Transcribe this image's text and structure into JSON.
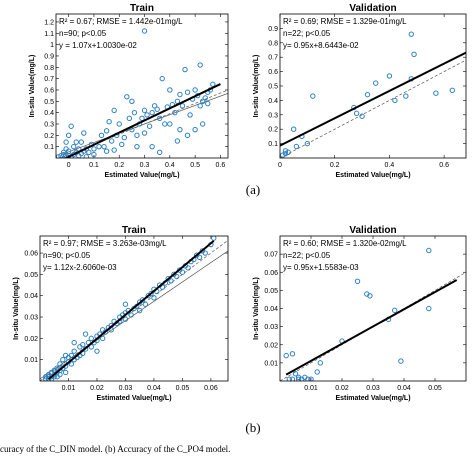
{
  "labels": {
    "a": "(a)",
    "b": "(b)"
  },
  "caption": "curacy of the C_DIN model. (b) Accuracy of the C_PO4 model.",
  "colors": {
    "points": "#2f80c2",
    "fit": "#000000",
    "reference": "#555555"
  },
  "chart_data": [
    {
      "type": "scatter",
      "title": "Train",
      "xlabel": "Estimated Value(mg/L)",
      "ylabel": "In-situ Value(mg/L)",
      "xlim": [
        -0.05,
        0.63
      ],
      "ylim": [
        0,
        1.27
      ],
      "xticks": [
        0,
        0.1,
        0.2,
        0.3,
        0.4,
        0.5,
        0.6
      ],
      "xtick_labels": [
        "0",
        "0.1",
        "0.2",
        "0.3",
        "0.4",
        "0.5",
        "0.6"
      ],
      "yticks": [
        0.1,
        0.2,
        0.3,
        0.4,
        0.5,
        0.6,
        0.7,
        0.8,
        0.9,
        1.0,
        1.1,
        1.2
      ],
      "ytick_labels": [
        "0.1",
        "0.2",
        "0.3",
        "0.4",
        "0.5",
        "0.6",
        "0.7",
        "0.8",
        "0.9",
        "1",
        "1.1",
        "1.2"
      ],
      "stats": [
        "R² = 0.67; RMSE = 1.442e-01mg/L",
        "n=90; p<0.05",
        "y = 1.07x+1.0030e-02"
      ],
      "fit_line": {
        "x": [
          -0.03,
          0.6
        ],
        "y": [
          -0.022,
          0.652
        ]
      },
      "reference_lines": [
        {
          "style": "dashed",
          "x": [
            -0.03,
            0.63
          ],
          "y": [
            0.0,
            0.6
          ]
        },
        {
          "style": "solid",
          "x": [
            -0.03,
            0.63
          ],
          "y": [
            0.03,
            0.57
          ]
        }
      ],
      "points": [
        [
          -0.04,
          0.01
        ],
        [
          -0.03,
          0.02
        ],
        [
          -0.02,
          0.03
        ],
        [
          -0.02,
          0.05
        ],
        [
          -0.01,
          0.02
        ],
        [
          -0.01,
          0.08
        ],
        [
          -0.01,
          0.14
        ],
        [
          0.0,
          0.02
        ],
        [
          0.0,
          0.06
        ],
        [
          0.0,
          0.2
        ],
        [
          0.01,
          0.28
        ],
        [
          0.01,
          0.01
        ],
        [
          0.02,
          0.1
        ],
        [
          0.02,
          0.03
        ],
        [
          0.03,
          0.05
        ],
        [
          0.03,
          0.14
        ],
        [
          0.04,
          0.02
        ],
        [
          0.04,
          0.08
        ],
        [
          0.05,
          0.04
        ],
        [
          0.05,
          0.14
        ],
        [
          0.06,
          0.06
        ],
        [
          0.07,
          0.01
        ],
        [
          0.07,
          0.08
        ],
        [
          0.08,
          0.05
        ],
        [
          0.09,
          0.12
        ],
        [
          0.1,
          0.03
        ],
        [
          0.1,
          0.08
        ],
        [
          0.12,
          0.1
        ],
        [
          0.13,
          0.2
        ],
        [
          0.14,
          0.1
        ],
        [
          0.15,
          0.06
        ],
        [
          0.15,
          0.24
        ],
        [
          0.16,
          0.32
        ],
        [
          0.17,
          0.15
        ],
        [
          0.18,
          0.07
        ],
        [
          0.18,
          0.42
        ],
        [
          0.19,
          0.2
        ],
        [
          0.2,
          0.3
        ],
        [
          0.21,
          0.12
        ],
        [
          0.22,
          0.18
        ],
        [
          0.23,
          0.54
        ],
        [
          0.24,
          0.35
        ],
        [
          0.25,
          0.5
        ],
        [
          0.25,
          0.25
        ],
        [
          0.26,
          0.4
        ],
        [
          0.27,
          0.2
        ],
        [
          0.28,
          0.3
        ],
        [
          0.29,
          0.35
        ],
        [
          0.3,
          0.22
        ],
        [
          0.3,
          0.42
        ],
        [
          0.31,
          0.38
        ],
        [
          0.32,
          0.28
        ],
        [
          0.33,
          0.4
        ],
        [
          0.33,
          0.1
        ],
        [
          0.34,
          0.46
        ],
        [
          0.35,
          0.43
        ],
        [
          0.36,
          0.35
        ],
        [
          0.37,
          0.7
        ],
        [
          0.38,
          0.3
        ],
        [
          0.39,
          0.45
        ],
        [
          0.4,
          0.3
        ],
        [
          0.4,
          0.6
        ],
        [
          0.41,
          0.47
        ],
        [
          0.42,
          0.4
        ],
        [
          0.43,
          0.5
        ],
        [
          0.43,
          0.15
        ],
        [
          0.44,
          0.56
        ],
        [
          0.45,
          0.46
        ],
        [
          0.46,
          0.78
        ],
        [
          0.47,
          0.2
        ],
        [
          0.47,
          0.58
        ],
        [
          0.48,
          0.38
        ],
        [
          0.49,
          0.52
        ],
        [
          0.5,
          0.25
        ],
        [
          0.5,
          0.6
        ],
        [
          0.51,
          0.55
        ],
        [
          0.52,
          0.46
        ],
        [
          0.52,
          0.82
        ],
        [
          0.53,
          0.5
        ],
        [
          0.54,
          0.53
        ],
        [
          0.55,
          0.58
        ],
        [
          0.56,
          0.6
        ],
        [
          0.55,
          0.48
        ],
        [
          0.53,
          0.3
        ],
        [
          0.44,
          0.25
        ],
        [
          0.36,
          0.05
        ],
        [
          0.27,
          0.1
        ],
        [
          0.06,
          0.22
        ],
        [
          0.57,
          0.65
        ],
        [
          0.3,
          1.12
        ]
      ]
    },
    {
      "type": "scatter",
      "title": "Validation",
      "xlabel": "Estimated Value(mg/L)",
      "ylabel": "In-situ Value(mg/L)",
      "xlim": [
        0,
        0.68
      ],
      "ylim": [
        0,
        1.0
      ],
      "xticks": [
        0,
        0.2,
        0.4,
        0.6
      ],
      "xtick_labels": [
        "0",
        "0.2",
        "0.4",
        "0.6"
      ],
      "yticks": [
        0.1,
        0.2,
        0.3,
        0.4,
        0.5,
        0.6,
        0.7,
        0.8,
        0.9
      ],
      "ytick_labels": [
        "0.1",
        "0.2",
        "0.3",
        "0.4",
        "0.5",
        "0.6",
        "0.7",
        "0.8",
        "0.9"
      ],
      "stats": [
        "R² = 0.69; RMSE = 1.329e-01mg/L",
        "n=22; p<0.05",
        "y= 0.95x+8.6443e-02"
      ],
      "fit_line": {
        "x": [
          0,
          0.68
        ],
        "y": [
          0.086,
          0.732
        ]
      },
      "reference_lines": [
        {
          "style": "dashed",
          "x": [
            0,
            0.68
          ],
          "y": [
            0.0,
            0.68
          ]
        }
      ],
      "points": [
        [
          0.01,
          0.02
        ],
        [
          0.02,
          0.03
        ],
        [
          0.03,
          0.04
        ],
        [
          0.05,
          0.2
        ],
        [
          0.06,
          0.08
        ],
        [
          0.08,
          0.15
        ],
        [
          0.1,
          0.1
        ],
        [
          0.12,
          0.43
        ],
        [
          0.27,
          0.35
        ],
        [
          0.28,
          0.31
        ],
        [
          0.3,
          0.29
        ],
        [
          0.32,
          0.44
        ],
        [
          0.35,
          0.52
        ],
        [
          0.4,
          0.57
        ],
        [
          0.42,
          0.4
        ],
        [
          0.46,
          0.43
        ],
        [
          0.48,
          0.55
        ],
        [
          0.48,
          0.86
        ],
        [
          0.49,
          0.72
        ],
        [
          0.57,
          0.45
        ],
        [
          0.63,
          0.47
        ],
        [
          0.02,
          0.05
        ]
      ]
    },
    {
      "type": "scatter",
      "title": "Train",
      "xlabel": "Estimated Value(mg/L)",
      "ylabel": "In-situ Value(mg/L)",
      "xlim": [
        0,
        0.066
      ],
      "ylim": [
        0,
        0.068
      ],
      "xticks": [
        0.01,
        0.02,
        0.03,
        0.04,
        0.05,
        0.06
      ],
      "xtick_labels": [
        "0.01",
        "0.02",
        "0.03",
        "0.04",
        "0.05",
        "0.06"
      ],
      "yticks": [
        0.01,
        0.02,
        0.03,
        0.04,
        0.05,
        0.06
      ],
      "ytick_labels": [
        "0.01",
        "0.02",
        "0.03",
        "0.04",
        "0.05",
        "0.06"
      ],
      "stats": [
        "R² = 0.97; RMSE = 3.263e-03mg/L",
        "n=90; p<0.05",
        "y= 1.12x-2.6060e-03"
      ],
      "fit_line": {
        "x": [
          0.003,
          0.061
        ],
        "y": [
          0.0008,
          0.0657
        ]
      },
      "reference_lines": [
        {
          "style": "dashed",
          "x": [
            0,
            0.066
          ],
          "y": [
            0.0,
            0.066
          ]
        },
        {
          "style": "solid",
          "x": [
            0,
            0.066
          ],
          "y": [
            0.001,
            0.061
          ]
        }
      ],
      "points": [
        [
          0.002,
          0.001
        ],
        [
          0.002,
          0.002
        ],
        [
          0.003,
          0.001
        ],
        [
          0.003,
          0.003
        ],
        [
          0.003,
          0.002
        ],
        [
          0.004,
          0.004
        ],
        [
          0.004,
          0.001
        ],
        [
          0.004,
          0.002
        ],
        [
          0.005,
          0.003
        ],
        [
          0.005,
          0.005
        ],
        [
          0.005,
          0.002
        ],
        [
          0.006,
          0.004
        ],
        [
          0.006,
          0.006
        ],
        [
          0.006,
          0.002
        ],
        [
          0.007,
          0.005
        ],
        [
          0.007,
          0.008
        ],
        [
          0.007,
          0.003
        ],
        [
          0.008,
          0.006
        ],
        [
          0.008,
          0.01
        ],
        [
          0.009,
          0.007
        ],
        [
          0.009,
          0.012
        ],
        [
          0.01,
          0.009
        ],
        [
          0.01,
          0.011
        ],
        [
          0.011,
          0.008
        ],
        [
          0.011,
          0.012
        ],
        [
          0.012,
          0.01
        ],
        [
          0.012,
          0.014
        ],
        [
          0.013,
          0.011
        ],
        [
          0.014,
          0.012
        ],
        [
          0.014,
          0.016
        ],
        [
          0.015,
          0.013
        ],
        [
          0.015,
          0.017
        ],
        [
          0.016,
          0.015
        ],
        [
          0.017,
          0.018
        ],
        [
          0.018,
          0.016
        ],
        [
          0.018,
          0.02
        ],
        [
          0.019,
          0.018
        ],
        [
          0.02,
          0.021
        ],
        [
          0.02,
          0.019
        ],
        [
          0.021,
          0.022
        ],
        [
          0.022,
          0.024
        ],
        [
          0.022,
          0.02
        ],
        [
          0.023,
          0.023
        ],
        [
          0.024,
          0.025
        ],
        [
          0.025,
          0.024
        ],
        [
          0.025,
          0.026
        ],
        [
          0.026,
          0.028
        ],
        [
          0.027,
          0.027
        ],
        [
          0.028,
          0.03
        ],
        [
          0.028,
          0.028
        ],
        [
          0.029,
          0.031
        ],
        [
          0.03,
          0.029
        ],
        [
          0.03,
          0.032
        ],
        [
          0.031,
          0.033
        ],
        [
          0.032,
          0.031
        ],
        [
          0.033,
          0.034
        ],
        [
          0.034,
          0.035
        ],
        [
          0.035,
          0.033
        ],
        [
          0.035,
          0.037
        ],
        [
          0.036,
          0.038
        ],
        [
          0.037,
          0.036
        ],
        [
          0.038,
          0.04
        ],
        [
          0.039,
          0.041
        ],
        [
          0.04,
          0.039
        ],
        [
          0.04,
          0.043
        ],
        [
          0.041,
          0.042
        ],
        [
          0.042,
          0.045
        ],
        [
          0.043,
          0.044
        ],
        [
          0.044,
          0.046
        ],
        [
          0.045,
          0.048
        ],
        [
          0.046,
          0.047
        ],
        [
          0.047,
          0.05
        ],
        [
          0.048,
          0.049
        ],
        [
          0.049,
          0.052
        ],
        [
          0.05,
          0.051
        ],
        [
          0.051,
          0.054
        ],
        [
          0.052,
          0.053
        ],
        [
          0.053,
          0.056
        ],
        [
          0.054,
          0.057
        ],
        [
          0.055,
          0.059
        ],
        [
          0.056,
          0.058
        ],
        [
          0.057,
          0.061
        ],
        [
          0.058,
          0.06
        ],
        [
          0.06,
          0.064
        ],
        [
          0.061,
          0.067
        ],
        [
          0.016,
          0.022
        ],
        [
          0.02,
          0.014
        ],
        [
          0.03,
          0.036
        ],
        [
          0.012,
          0.018
        ],
        [
          0.009,
          0.004
        ]
      ]
    },
    {
      "type": "scatter",
      "title": "Validation",
      "xlabel": "Estimated Value(mg/L)",
      "ylabel": "In-situ Value(mg/L)",
      "xlim": [
        0,
        0.06
      ],
      "ylim": [
        0,
        0.08
      ],
      "xticks": [
        0.01,
        0.02,
        0.03,
        0.04,
        0.05
      ],
      "xtick_labels": [
        "0.01",
        "0.02",
        "0.03",
        "0.04",
        "0.05"
      ],
      "yticks": [
        0.01,
        0.02,
        0.03,
        0.04,
        0.05,
        0.06,
        0.07
      ],
      "ytick_labels": [
        "0.01",
        "0.02",
        "0.03",
        "0.04",
        "0.05",
        "0.06",
        "0.07"
      ],
      "stats": [
        "R² = 0.60; RMSE = 1.320e-02mg/L",
        "n=22; p<0.05",
        "y= 0.95x+1.5583e-03"
      ],
      "fit_line": {
        "x": [
          0.002,
          0.057
        ],
        "y": [
          0.0035,
          0.0557
        ]
      },
      "reference_lines": [
        {
          "style": "dashed",
          "x": [
            0,
            0.06
          ],
          "y": [
            0.0,
            0.06
          ]
        }
      ],
      "points": [
        [
          0.002,
          0.014
        ],
        [
          0.003,
          0.001
        ],
        [
          0.004,
          0.015
        ],
        [
          0.004,
          0.001
        ],
        [
          0.005,
          0.004
        ],
        [
          0.006,
          0.002
        ],
        [
          0.006,
          0.001
        ],
        [
          0.007,
          0.001
        ],
        [
          0.008,
          0.002
        ],
        [
          0.009,
          0.001
        ],
        [
          0.01,
          0.001
        ],
        [
          0.012,
          0.005
        ],
        [
          0.013,
          0.01
        ],
        [
          0.02,
          0.022
        ],
        [
          0.025,
          0.055
        ],
        [
          0.028,
          0.048
        ],
        [
          0.029,
          0.047
        ],
        [
          0.035,
          0.034
        ],
        [
          0.037,
          0.039
        ],
        [
          0.039,
          0.011
        ],
        [
          0.048,
          0.04
        ],
        [
          0.048,
          0.072
        ]
      ]
    }
  ]
}
